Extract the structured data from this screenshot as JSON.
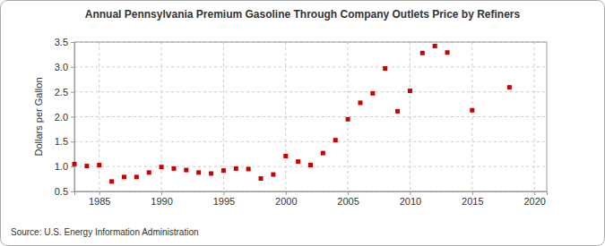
{
  "chart_data": {
    "type": "scatter",
    "title": "Annual Pennsylvania Premium Gasoline Through Company Outlets Price by Refiners",
    "y_label": "Dollars per Gallon",
    "source": "Source: U.S. Energy Information Administration",
    "x": [
      1983,
      1984,
      1985,
      1986,
      1987,
      1988,
      1989,
      1990,
      1991,
      1992,
      1993,
      1994,
      1995,
      1996,
      1997,
      1998,
      1999,
      2000,
      2001,
      2002,
      2003,
      2004,
      2005,
      2006,
      2007,
      2008,
      2009,
      2010,
      2011,
      2012,
      2013,
      2015,
      2018
    ],
    "values": [
      1.05,
      1.01,
      1.03,
      0.7,
      0.79,
      0.79,
      0.88,
      0.99,
      0.96,
      0.93,
      0.88,
      0.86,
      0.92,
      0.96,
      0.95,
      0.76,
      0.84,
      1.21,
      1.1,
      1.03,
      1.27,
      1.53,
      1.95,
      2.28,
      2.47,
      2.97,
      2.11,
      2.52,
      3.28,
      3.42,
      3.29,
      2.13,
      2.59
    ],
    "color": "#cc0000",
    "marker": "square",
    "xlim": [
      1983,
      2021
    ],
    "xticks": [
      1985,
      1990,
      1995,
      2000,
      2005,
      2010,
      2015,
      2020
    ],
    "ylim": [
      0.5,
      3.5
    ],
    "yticks": [
      {
        "value": 0.5,
        "label": "0.5"
      },
      {
        "value": 1.0,
        "label": "1.0"
      },
      {
        "value": 1.5,
        "label": "1.5"
      },
      {
        "value": 2.0,
        "label": "2.0"
      },
      {
        "value": 2.5,
        "label": "2.5"
      },
      {
        "value": 3.0,
        "label": "3.0"
      },
      {
        "value": 3.5,
        "label": "3.5"
      }
    ],
    "grid": true
  }
}
